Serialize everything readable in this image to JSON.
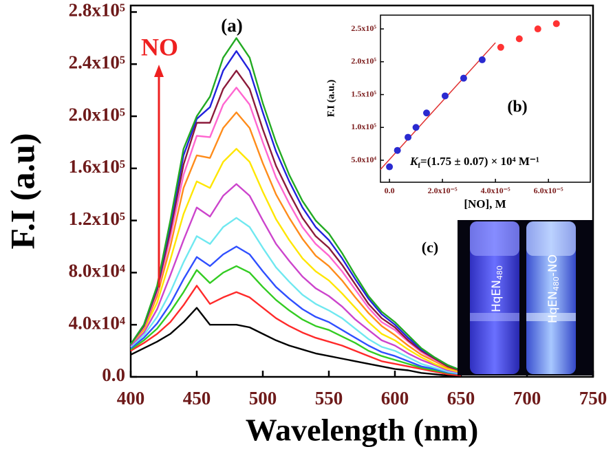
{
  "chart_data": [
    {
      "type": "line",
      "annotation_panel": "(a)",
      "annotation_arrow": "NO",
      "ylabel": "F.I (a.u)",
      "xlabel": "Wavelength (nm)",
      "xlim": [
        400,
        750
      ],
      "xticks": [
        400,
        450,
        500,
        550,
        600,
        650,
        700,
        750
      ],
      "ylim": [
        0,
        285000
      ],
      "yticks": [
        {
          "value": 0,
          "label": "0.0"
        },
        {
          "value": 40000,
          "label": "4.0x10⁴"
        },
        {
          "value": 80000,
          "label": "8.0x10⁴"
        },
        {
          "value": 120000,
          "label": "1.2x10⁵"
        },
        {
          "value": 160000,
          "label": "1.6x10⁵"
        },
        {
          "value": 200000,
          "label": "2.0x10⁵"
        },
        {
          "value": 240000,
          "label": "2.4x10⁵"
        },
        {
          "value": 280000,
          "label": "2.8x10⁵"
        }
      ],
      "x": [
        400,
        410,
        420,
        430,
        440,
        450,
        460,
        470,
        480,
        490,
        500,
        510,
        520,
        530,
        540,
        550,
        560,
        570,
        580,
        590,
        600,
        610,
        620,
        630,
        640,
        650
      ],
      "series": [
        {
          "color": "#000000",
          "values": [
            17000,
            22000,
            27000,
            33000,
            42000,
            53000,
            40000,
            40000,
            40000,
            38000,
            33000,
            28000,
            24000,
            21000,
            18000,
            16000,
            14000,
            12000,
            10000,
            8000,
            6000,
            5000,
            3000,
            2000,
            1000,
            500
          ]
        },
        {
          "color": "#ff2a2a",
          "values": [
            20000,
            26000,
            33000,
            42000,
            55000,
            70000,
            56000,
            61000,
            65000,
            61000,
            53000,
            45000,
            39000,
            34000,
            30000,
            27000,
            24000,
            20000,
            16000,
            12000,
            10000,
            8000,
            6000,
            4000,
            2000,
            1000
          ]
        },
        {
          "color": "#33cc22",
          "values": [
            21000,
            28000,
            37000,
            50000,
            65000,
            82000,
            72000,
            80000,
            85000,
            80000,
            69000,
            59000,
            51000,
            44000,
            39000,
            36000,
            31000,
            26000,
            20000,
            16000,
            13000,
            10000,
            7000,
            5000,
            3000,
            2000
          ]
        },
        {
          "color": "#2f4fff",
          "values": [
            22000,
            30000,
            41000,
            56000,
            75000,
            92000,
            85000,
            94000,
            100000,
            94000,
            81000,
            69000,
            60000,
            52000,
            46000,
            42000,
            36000,
            30000,
            24000,
            19000,
            16000,
            12000,
            8000,
            6000,
            3500,
            2000
          ]
        },
        {
          "color": "#6fe8f0",
          "values": [
            23000,
            32000,
            46000,
            65000,
            88000,
            108000,
            102000,
            115000,
            122000,
            115000,
            99000,
            84000,
            73000,
            63000,
            56000,
            51000,
            45000,
            37000,
            29000,
            23000,
            20000,
            15000,
            10000,
            7000,
            4000,
            2400
          ]
        },
        {
          "color": "#cc44cc",
          "values": [
            24000,
            34000,
            52000,
            78000,
            105000,
            130000,
            123000,
            139000,
            148000,
            139000,
            120000,
            102000,
            89000,
            77000,
            68000,
            62000,
            54000,
            44000,
            36000,
            28000,
            24000,
            18000,
            13000,
            9000,
            5000,
            3000
          ]
        },
        {
          "color": "#ffe600",
          "values": [
            25000,
            36000,
            57000,
            90000,
            125000,
            150000,
            145000,
            165000,
            175000,
            165000,
            142000,
            121000,
            105000,
            91000,
            81000,
            74000,
            64000,
            53000,
            42000,
            33000,
            28000,
            21000,
            15000,
            10000,
            6000,
            3500
          ]
        },
        {
          "color": "#ff8c1a",
          "values": [
            25000,
            37000,
            62000,
            100000,
            145000,
            170000,
            168000,
            191000,
            203000,
            191000,
            164000,
            140000,
            122000,
            106000,
            93000,
            85000,
            74000,
            61000,
            49000,
            39000,
            32000,
            24000,
            17000,
            12000,
            7000,
            4000
          ]
        },
        {
          "color": "#ff66d0",
          "values": [
            25000,
            38000,
            65000,
            107000,
            155000,
            185000,
            184000,
            209000,
            222000,
            209000,
            180000,
            153000,
            133000,
            115000,
            102000,
            93000,
            81000,
            67000,
            53000,
            42000,
            36000,
            27000,
            19000,
            13000,
            8000,
            4500
          ]
        },
        {
          "color": "#8b1a3a",
          "values": [
            25000,
            39000,
            67000,
            112000,
            163000,
            195000,
            195000,
            221000,
            235000,
            221000,
            190000,
            162000,
            141000,
            122000,
            108000,
            99000,
            86000,
            71000,
            56000,
            45000,
            38000,
            28000,
            20000,
            14000,
            8000,
            4700
          ]
        },
        {
          "color": "#2222dd",
          "values": [
            25000,
            40000,
            69000,
            117000,
            170000,
            198000,
            207000,
            235000,
            250000,
            235000,
            203000,
            173000,
            150000,
            130000,
            115000,
            105000,
            91000,
            75000,
            60000,
            48000,
            40000,
            30000,
            21000,
            15000,
            9000,
            5000
          ]
        },
        {
          "color": "#22aa22",
          "values": [
            25000,
            40000,
            70000,
            120000,
            175000,
            200000,
            215000,
            245000,
            260000,
            245000,
            210000,
            180000,
            155000,
            135000,
            120000,
            110000,
            95000,
            78000,
            62000,
            50000,
            42000,
            32000,
            22000,
            15000,
            9000,
            5000
          ]
        }
      ]
    },
    {
      "type": "scatter",
      "annotation_panel": "(b)",
      "k_symbol": "K",
      "k_subscript": "f",
      "k_value": "=(1.75 ± 0.07) × 10⁴ M⁻¹",
      "ylabel": "F.I (a.u.)",
      "xlabel": "[NO], M",
      "xlim": [
        -3.4e-06,
        7.58e-05
      ],
      "xticks": [
        {
          "value": 0,
          "label": "0.0"
        },
        {
          "value": 2e-05,
          "label": "2.0x10⁻⁵"
        },
        {
          "value": 4e-05,
          "label": "4.0x10⁻⁵"
        },
        {
          "value": 6e-05,
          "label": "6.0x10⁻⁵"
        }
      ],
      "ylim": [
        16500,
        271000
      ],
      "yticks": [
        {
          "value": 50000,
          "label": "5.0x10⁴"
        },
        {
          "value": 100000,
          "label": "1.0x10⁵"
        },
        {
          "value": 150000,
          "label": "1.5x10⁵"
        },
        {
          "value": 200000,
          "label": "2.0x10⁵"
        },
        {
          "value": 250000,
          "label": "2.5x10⁵"
        }
      ],
      "series": [
        {
          "color": "#2a2ad0",
          "x": [
            0,
            3e-06,
            7e-06,
            1e-05,
            1.4e-05,
            2.1e-05,
            2.8e-05,
            3.5e-05
          ],
          "values": [
            40000,
            65000,
            85000,
            100000,
            122000,
            148000,
            175000,
            203000
          ]
        },
        {
          "color": "#ff3333",
          "x": [
            4.2e-05,
            4.9e-05,
            5.6e-05,
            6.3e-05
          ],
          "values": [
            222000,
            235000,
            250000,
            258000
          ]
        }
      ],
      "fit": {
        "color": "#e03030",
        "x": [
          -3.4e-06,
          4e-05
        ],
        "values": [
          36000,
          229000
        ]
      }
    }
  ],
  "photo": {
    "label": "(c)",
    "vials": [
      {
        "parts": [
          "HqEN",
          "480"
        ]
      },
      {
        "parts": [
          "HqEN",
          "480",
          "-NO"
        ]
      }
    ]
  }
}
